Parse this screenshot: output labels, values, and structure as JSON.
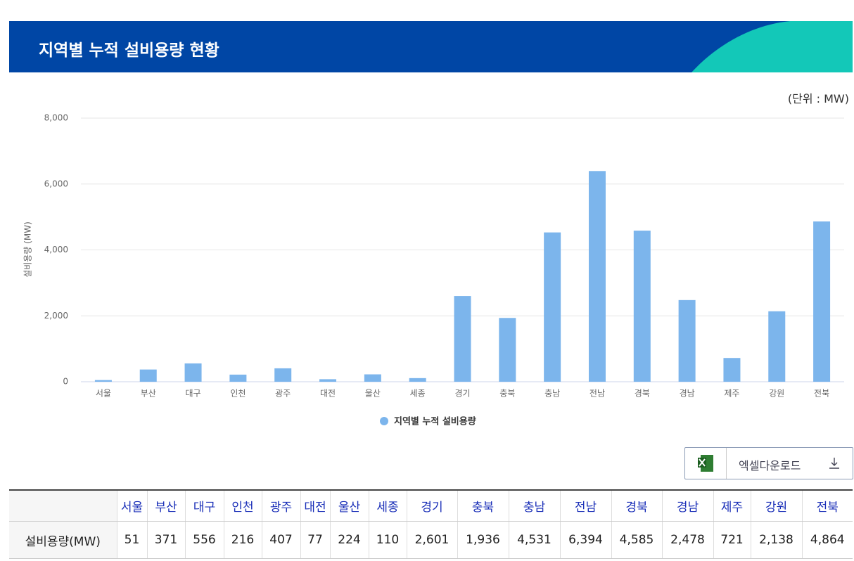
{
  "header": {
    "title": "지역별 누적 설비용량 현황"
  },
  "unit_note": "(단위 : MW)",
  "download_button": "엑셀다운로드",
  "chart_data": {
    "type": "bar",
    "y_label": "설비용량 (MW)",
    "categories": [
      "서울",
      "부산",
      "대구",
      "인천",
      "광주",
      "대전",
      "울산",
      "세종",
      "경기",
      "충북",
      "충남",
      "전남",
      "경북",
      "경남",
      "제주",
      "강원",
      "전북"
    ],
    "series": [
      {
        "name": "지역별 누적 설비용량",
        "color": "#7cb5ec",
        "values": [
          51,
          371,
          556,
          216,
          407,
          77,
          224,
          110,
          2601,
          1936,
          4531,
          6394,
          4585,
          2478,
          721,
          2138,
          4864
        ],
        "value_labels": [
          "51",
          "371",
          "556",
          "216",
          "407",
          "77",
          "224",
          "110",
          "2,601",
          "1,936",
          "4,531",
          "6,394",
          "4,585",
          "2,478",
          "721",
          "2,138",
          "4,864"
        ]
      }
    ],
    "ylim": [
      0,
      8000
    ],
    "yticks": [
      0,
      {
        "value": 2000,
        "label": "2,000"
      },
      {
        "value": 4000,
        "label": "4,000"
      },
      {
        "value": 6000,
        "label": "6,000"
      },
      {
        "value": 8000,
        "label": "8,000"
      }
    ],
    "grid": true,
    "legend": "bottom"
  },
  "table": {
    "row_header": "설비용량(MW)"
  }
}
